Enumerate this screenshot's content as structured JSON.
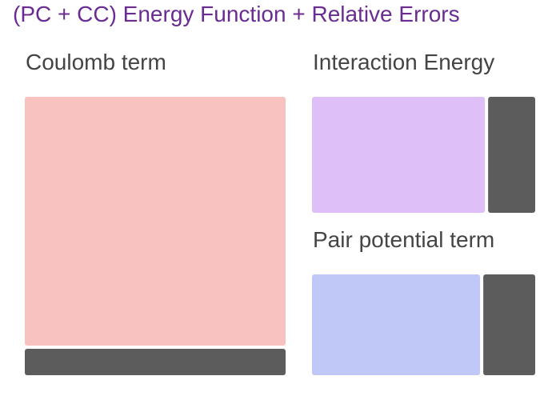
{
  "chart_data": {
    "type": "treemap",
    "title": "(PC + CC) Energy Function + Relative Errors",
    "panels": [
      {
        "name": "Coulomb term",
        "layout": "vertical",
        "segments": [
          {
            "label": "",
            "share": 0.904,
            "color": "#f7c2bf"
          },
          {
            "label": "",
            "share": 0.096,
            "color": "#5c5c5c"
          }
        ]
      },
      {
        "name": "Interaction Energy",
        "layout": "horizontal",
        "segments": [
          {
            "label": "",
            "share": 0.786,
            "color": "#dfbff7"
          },
          {
            "label": "",
            "share": 0.214,
            "color": "#5c5c5c"
          }
        ]
      },
      {
        "name": "Pair potential term",
        "layout": "horizontal",
        "segments": [
          {
            "label": "",
            "share": 0.764,
            "color": "#bfc8f7"
          },
          {
            "label": "",
            "share": 0.236,
            "color": "#5c5c5c"
          }
        ]
      }
    ]
  }
}
